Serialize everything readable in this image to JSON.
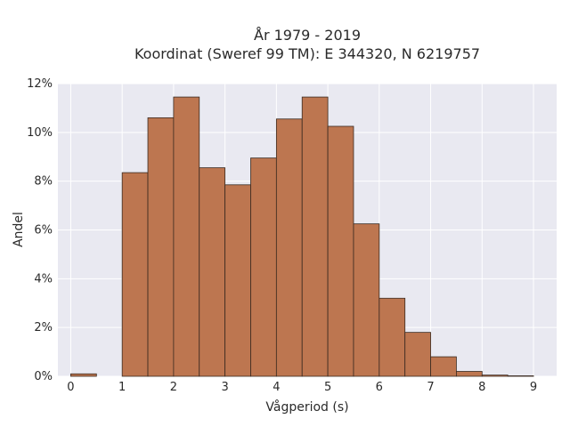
{
  "chart_data": {
    "type": "bar",
    "title_lines": [
      "År 1979 - 2019",
      "Koordinat (Sweref 99 TM): E 344320, N 6219757"
    ],
    "xlabel": "Vågperiod (s)",
    "ylabel": "Andel",
    "bin_width": 0.5,
    "bin_starts": [
      0,
      0.5,
      1,
      1.5,
      2,
      2.5,
      3,
      3.5,
      4,
      4.5,
      5,
      5.5,
      6,
      6.5,
      7,
      7.5,
      8,
      8.5
    ],
    "values": [
      0.1,
      0,
      8.35,
      10.6,
      11.45,
      8.55,
      7.85,
      8.95,
      10.55,
      11.45,
      10.25,
      6.25,
      3.2,
      1.8,
      0.8,
      0.2,
      0.05,
      0.02
    ],
    "xlim": [
      -0.25,
      9.45
    ],
    "ylim": [
      0,
      12
    ],
    "xticks": [
      0,
      1,
      2,
      3,
      4,
      5,
      6,
      7,
      8,
      9
    ],
    "xtick_labels": [
      "0",
      "1",
      "2",
      "3",
      "4",
      "5",
      "6",
      "7",
      "8",
      "9"
    ],
    "yticks": [
      0,
      2,
      4,
      6,
      8,
      10,
      12
    ],
    "ytick_labels": [
      "0%",
      "2%",
      "4%",
      "6%",
      "8%",
      "10%",
      "12%"
    ],
    "grid": true,
    "colors": {
      "bar_fill": "#bd7650",
      "bar_edge": "#3a2a20",
      "plot_background": "#e9e9f1",
      "grid": "#ffffff"
    }
  }
}
